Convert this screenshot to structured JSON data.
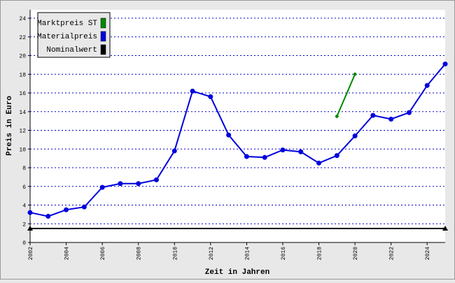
{
  "chart_data": {
    "type": "line",
    "x_label": "Zeit in Jahren",
    "y_label": "Preis in Euro",
    "x": [
      2002,
      2003,
      2004,
      2005,
      2006,
      2007,
      2008,
      2009,
      2010,
      2011,
      2012,
      2013,
      2014,
      2015,
      2016,
      2017,
      2018,
      2019,
      2020,
      2021,
      2022,
      2023,
      2024,
      2025
    ],
    "series": [
      {
        "name": "Marktpreis ST",
        "color": "#008800",
        "marker": "diamond",
        "values": [
          null,
          null,
          null,
          null,
          null,
          null,
          null,
          null,
          null,
          null,
          null,
          null,
          null,
          null,
          null,
          null,
          null,
          13.5,
          18.0,
          null,
          null,
          null,
          null,
          null
        ]
      },
      {
        "name": "Materialpreis",
        "color": "#0000dd",
        "marker": "circle",
        "values": [
          3.2,
          2.8,
          3.5,
          3.8,
          5.9,
          6.3,
          6.3,
          6.7,
          9.8,
          16.2,
          15.6,
          11.5,
          9.2,
          9.1,
          9.9,
          9.7,
          8.5,
          9.3,
          11.4,
          13.6,
          13.2,
          13.9,
          16.8,
          19.1
        ]
      },
      {
        "name": "Nominalwert",
        "color": "#000000",
        "marker": "triangle-ends",
        "values": [
          1.5,
          1.5,
          1.5,
          1.5,
          1.5,
          1.5,
          1.5,
          1.5,
          1.5,
          1.5,
          1.5,
          1.5,
          1.5,
          1.5,
          1.5,
          1.5,
          1.5,
          1.5,
          1.5,
          1.5,
          1.5,
          1.5,
          1.5,
          1.5
        ]
      }
    ],
    "xlim": [
      2002,
      2025
    ],
    "xticks": [
      2002,
      2004,
      2006,
      2008,
      2010,
      2012,
      2014,
      2016,
      2018,
      2020,
      2022,
      2024
    ],
    "ylim": [
      0,
      24.9
    ],
    "yticks": [
      0,
      2,
      4,
      6,
      8,
      10,
      12,
      14,
      16,
      18,
      20,
      22,
      24
    ],
    "grid": true,
    "legend": "top-left"
  }
}
